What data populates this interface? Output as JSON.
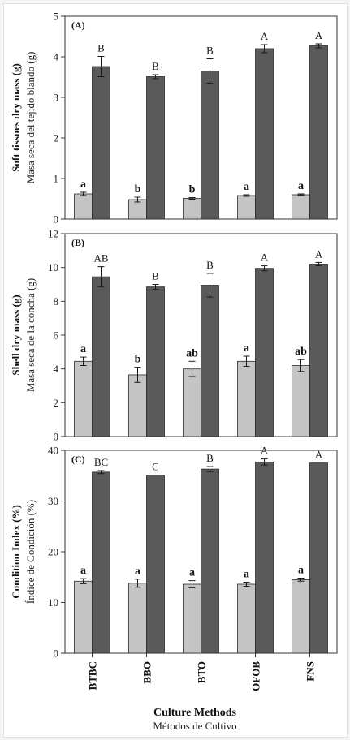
{
  "colors": {
    "before": "#c4c4c4",
    "after": "#5a5a5a",
    "axis": "#333333"
  },
  "x_axis": {
    "categories": [
      "BTBC",
      "BBO",
      "BTO",
      "OFOB",
      "FNS"
    ],
    "title": "Culture Methods",
    "subtitle": "Métodos de Cultivo"
  },
  "chart_data": [
    {
      "type": "bar",
      "panel_label": "(A)",
      "ylabel": "Soft tissues dry mass (g)",
      "ylabel_sub": "Masa seca del tejido blando (g)",
      "ylim": [
        0,
        5
      ],
      "yticks": [
        0,
        1,
        2,
        3,
        4,
        5
      ],
      "categories": [
        "BTBC",
        "BBO",
        "BTO",
        "OFOB",
        "FNS"
      ],
      "series": [
        {
          "values": [
            0.62,
            0.48,
            0.51,
            0.58,
            0.6
          ],
          "errors": [
            0.04,
            0.06,
            0.02,
            0.02,
            0.02
          ],
          "letters": [
            "a",
            "b",
            "b",
            "a",
            "a"
          ]
        },
        {
          "values": [
            3.76,
            3.51,
            3.65,
            4.2,
            4.27
          ],
          "errors": [
            0.25,
            0.05,
            0.3,
            0.1,
            0.05
          ],
          "letters": [
            "B",
            "B",
            "B",
            "A",
            "A"
          ]
        }
      ]
    },
    {
      "type": "bar",
      "panel_label": "(B)",
      "ylabel": "Shell dry mass (g)",
      "ylabel_sub": "Masa seca de la concha (g)",
      "ylim": [
        0,
        12
      ],
      "yticks": [
        0,
        2,
        4,
        6,
        8,
        10,
        12
      ],
      "categories": [
        "BTBC",
        "BBO",
        "BTO",
        "OFOB",
        "FNS"
      ],
      "series": [
        {
          "values": [
            4.45,
            3.65,
            4.0,
            4.45,
            4.2
          ],
          "errors": [
            0.25,
            0.45,
            0.45,
            0.3,
            0.35
          ],
          "letters": [
            "a",
            "b",
            "ab",
            "a",
            "ab"
          ]
        },
        {
          "values": [
            9.45,
            8.85,
            8.95,
            9.95,
            10.2
          ],
          "errors": [
            0.6,
            0.15,
            0.7,
            0.15,
            0.1
          ],
          "letters": [
            "AB",
            "B",
            "B",
            "A",
            "A"
          ]
        }
      ]
    },
    {
      "type": "bar",
      "panel_label": "(C)",
      "ylabel": "Condition Index (%)",
      "ylabel_sub": "Índice de Condición (%)",
      "ylim": [
        0,
        40
      ],
      "yticks": [
        0,
        10,
        20,
        30,
        40
      ],
      "categories": [
        "BTBC",
        "BBO",
        "BTO",
        "OFOB",
        "FNS"
      ],
      "series": [
        {
          "values": [
            14.2,
            13.8,
            13.6,
            13.6,
            14.5
          ],
          "errors": [
            0.5,
            0.8,
            0.7,
            0.4,
            0.3
          ],
          "letters": [
            "a",
            "a",
            "a",
            "a",
            "a"
          ]
        },
        {
          "values": [
            35.7,
            35.1,
            36.3,
            37.7,
            37.5
          ],
          "errors": [
            0.3,
            0.0,
            0.5,
            0.6,
            0.0
          ],
          "letters": [
            "BC",
            "C",
            "B",
            "A",
            "A"
          ]
        }
      ]
    }
  ]
}
